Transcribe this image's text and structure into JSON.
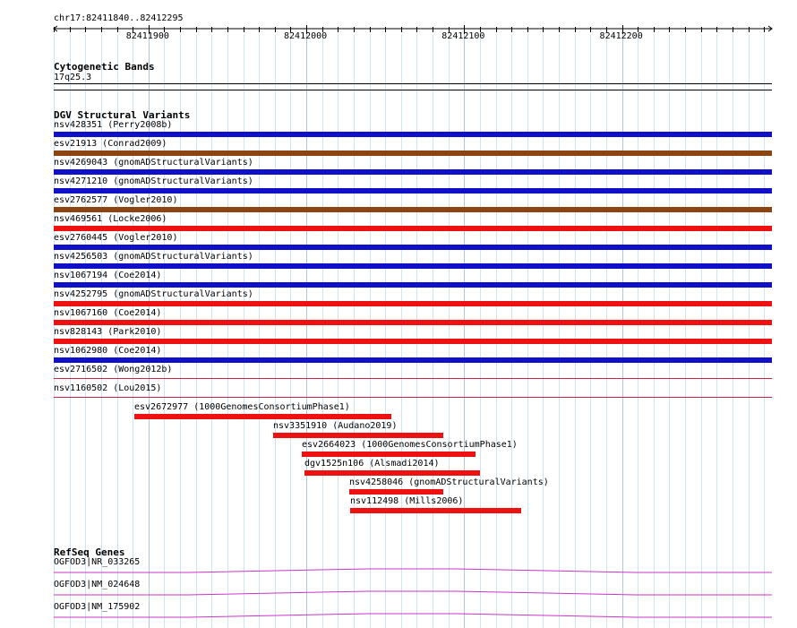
{
  "ruler": {
    "location": "chr17:82411840..82412295",
    "start": 82411840,
    "end": 82412295,
    "major_ticks": [
      82411900,
      82412000,
      82412100,
      82412200
    ]
  },
  "cytoband_track": {
    "title": "Cytogenetic Bands",
    "band": "17q25.3"
  },
  "dgv_track": {
    "title": "DGV Structural Variants",
    "variants": [
      {
        "label": "nsv428351 (Perry2008b)",
        "color": "#1010c8",
        "start": 82411840,
        "end": 82412295
      },
      {
        "label": "esv21913 (Conrad2009)",
        "color": "#8b4513",
        "start": 82411840,
        "end": 82412295
      },
      {
        "label": "nsv4269043 (gnomADStructuralVariants)",
        "color": "#1010c8",
        "start": 82411840,
        "end": 82412295
      },
      {
        "label": "nsv4271210 (gnomADStructuralVariants)",
        "color": "#1010c8",
        "start": 82411840,
        "end": 82412295
      },
      {
        "label": "esv2762577 (Vogler2010)",
        "color": "#8b4513",
        "start": 82411840,
        "end": 82412295
      },
      {
        "label": "nsv469561 (Locke2006)",
        "color": "#ee1111",
        "start": 82411840,
        "end": 82412295
      },
      {
        "label": "esv2760445 (Vogler2010)",
        "color": "#1010c8",
        "start": 82411840,
        "end": 82412295
      },
      {
        "label": "nsv4256503 (gnomADStructuralVariants)",
        "color": "#1010c8",
        "start": 82411840,
        "end": 82412295
      },
      {
        "label": "nsv1067194 (Coe2014)",
        "color": "#1010c8",
        "start": 82411840,
        "end": 82412295
      },
      {
        "label": "nsv4252795 (gnomADStructuralVariants)",
        "color": "#ee1111",
        "start": 82411840,
        "end": 82412295
      },
      {
        "label": "nsv1067160 (Coe2014)",
        "color": "#ee1111",
        "start": 82411840,
        "end": 82412295
      },
      {
        "label": "nsv828143 (Park2010)",
        "color": "#ee1111",
        "start": 82411840,
        "end": 82412295
      },
      {
        "label": "nsv1062980 (Coe2014)",
        "color": "#1010c8",
        "start": 82411840,
        "end": 82412295
      },
      {
        "label": "esv2716502 (Wong2012b)",
        "color": "#cc2244",
        "start": 82411840,
        "end": 82412295,
        "thin": true
      },
      {
        "label": "nsv1160502 (Lou2015)",
        "color": "#cc2244",
        "start": 82411840,
        "end": 82412295,
        "thin": true
      },
      {
        "label": "esv2672977 (1000GenomesConsortiumPhase1)",
        "color": "#ee1111",
        "start": 82411891,
        "end": 82412054
      },
      {
        "label": "nsv3351910 (Audano2019)",
        "color": "#ee1111",
        "start": 82411979,
        "end": 82412087
      },
      {
        "label": "esv2664023 (1000GenomesConsortiumPhase1)",
        "color": "#ee1111",
        "start": 82411997,
        "end": 82412107
      },
      {
        "label": "dgv1525n106 (Alsmadi2014)",
        "color": "#ee1111",
        "start": 82411999,
        "end": 82412110
      },
      {
        "label": "nsv4258046 (gnomADStructuralVariants)",
        "color": "#ee1111",
        "start": 82412027,
        "end": 82412087
      },
      {
        "label": "nsv112498 (Mills2006)",
        "color": "#ee1111",
        "start": 82412028,
        "end": 82412136
      }
    ]
  },
  "refseq_track": {
    "title": "RefSeq Genes",
    "color": "#cc33cc",
    "genes": [
      {
        "label": "OGFOD3|NR_033265"
      },
      {
        "label": "OGFOD3|NM_024648"
      },
      {
        "label": "OGFOD3|NM_175902"
      }
    ]
  }
}
